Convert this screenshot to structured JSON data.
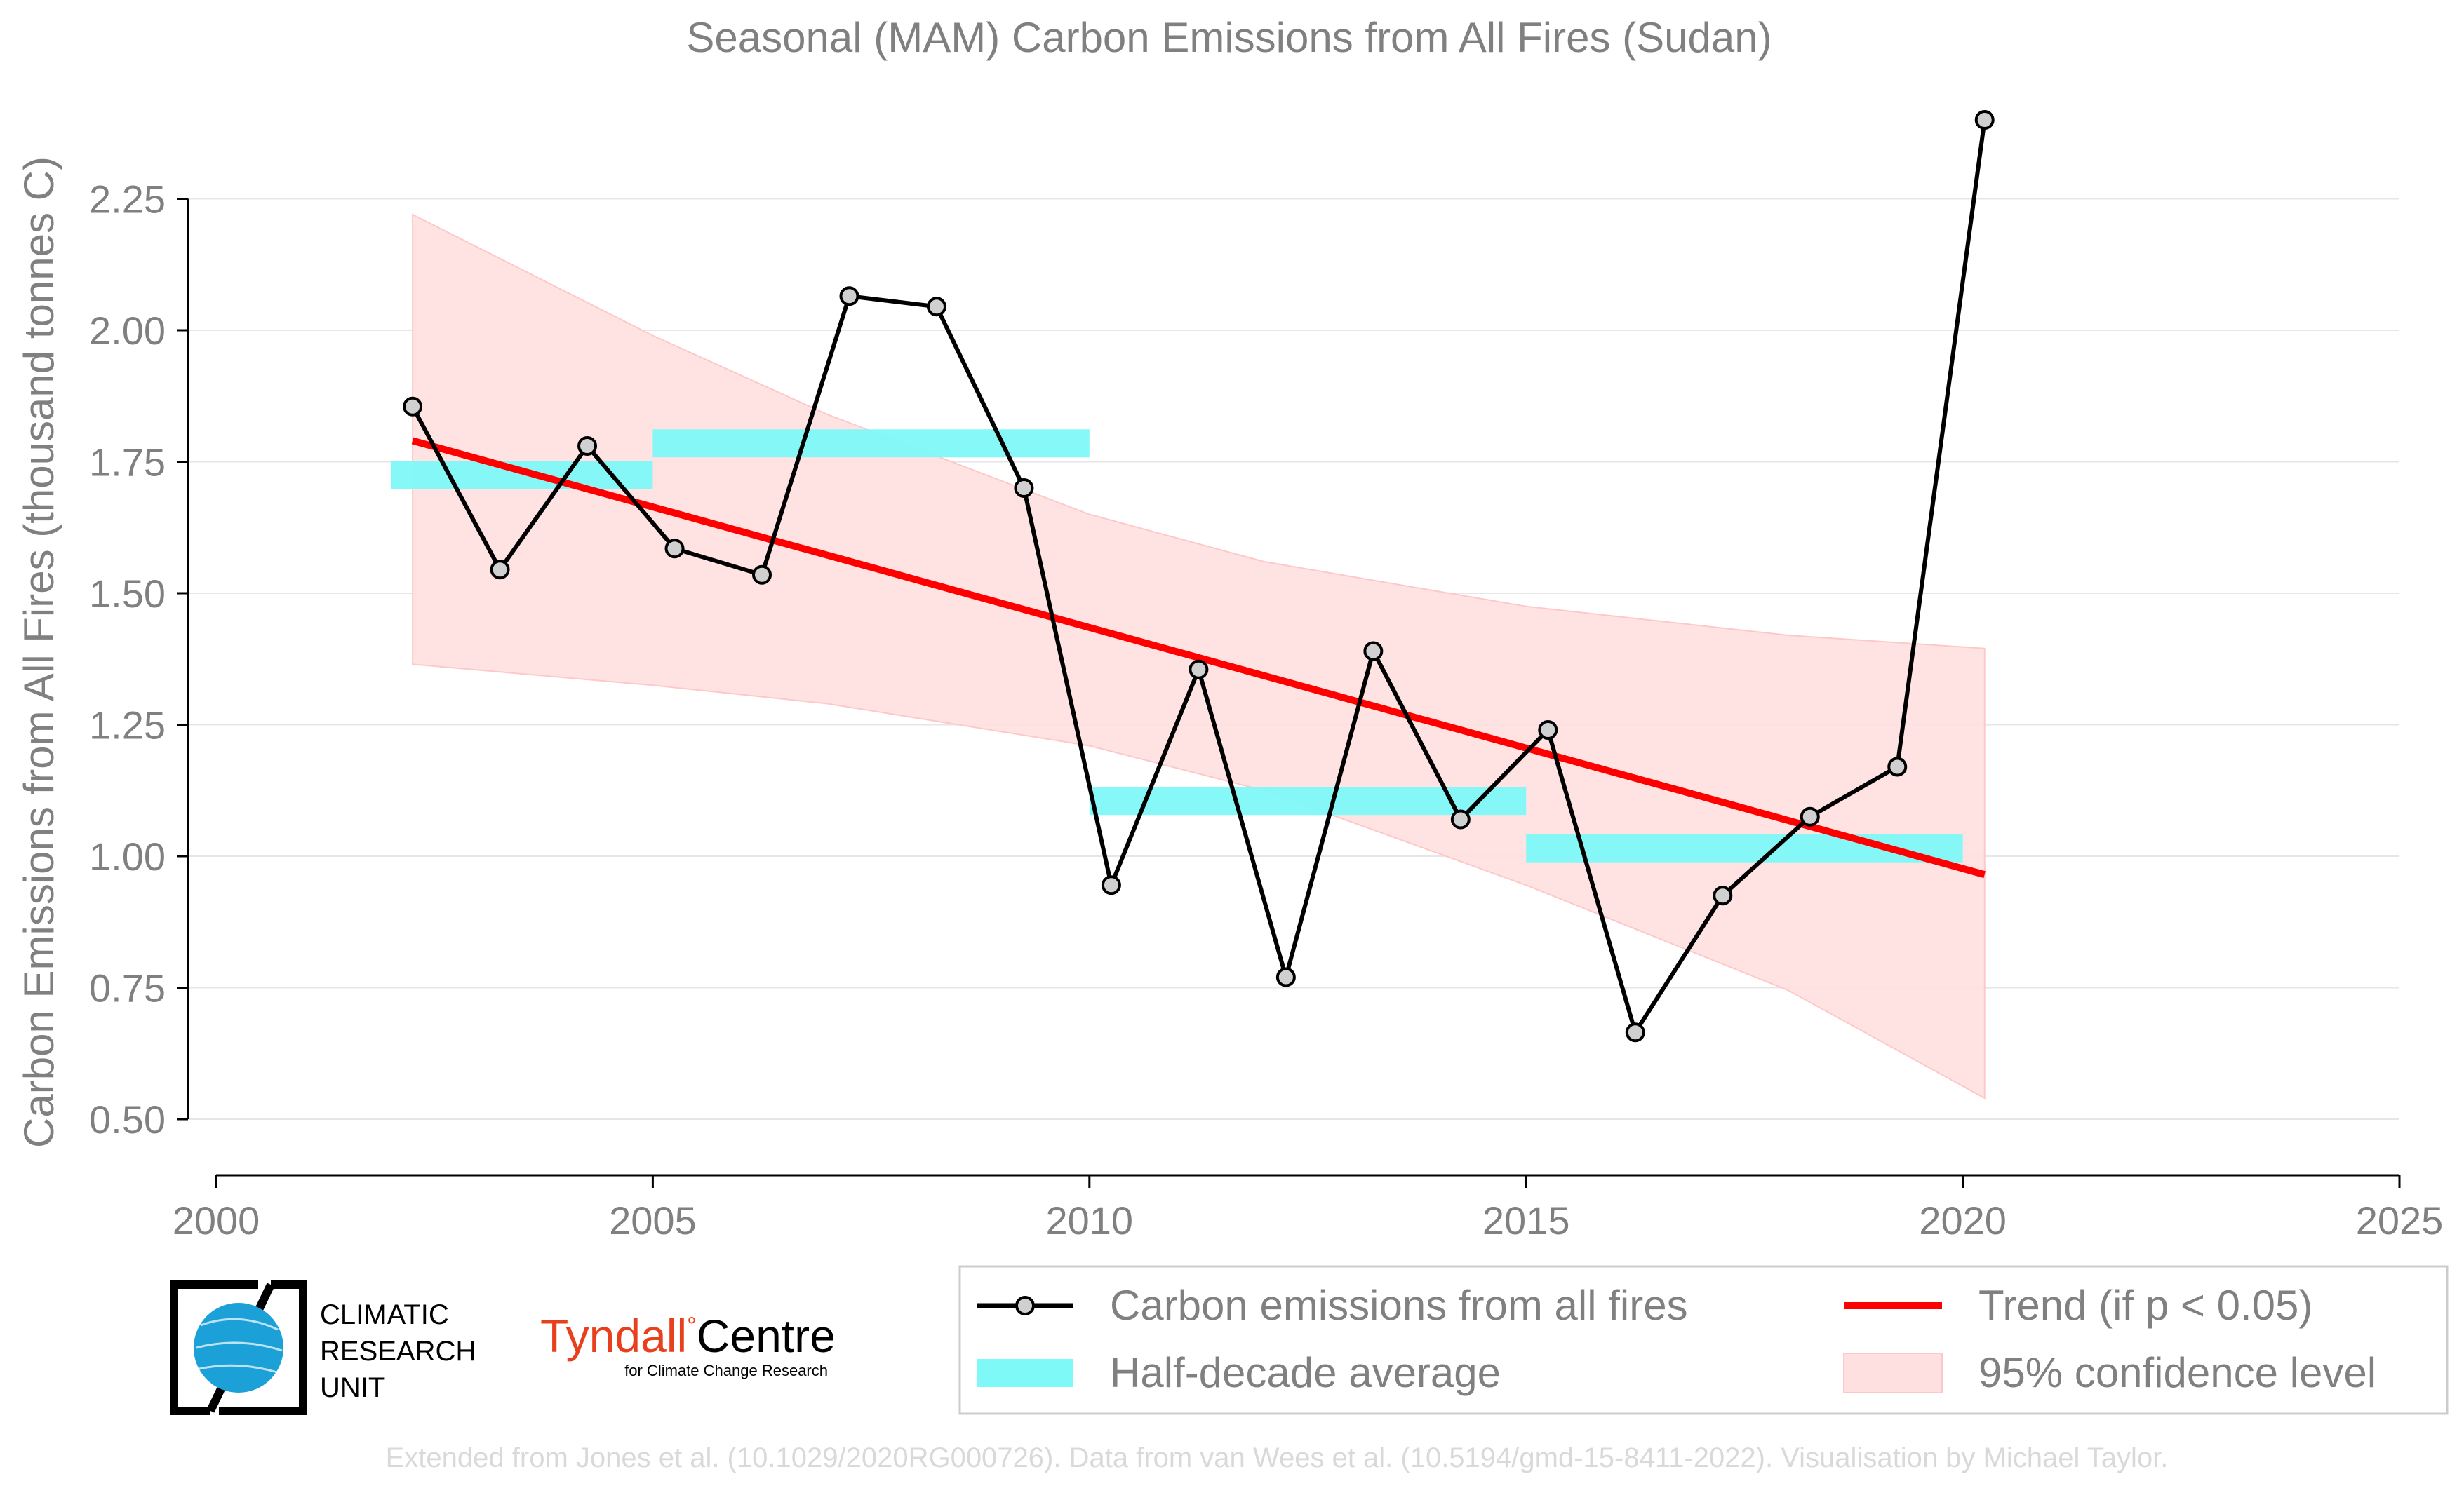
{
  "chart_data": {
    "type": "line",
    "title": "Seasonal (MAM) Carbon Emissions from All Fires (Sudan)",
    "xlabel": "",
    "ylabel": "Carbon Emissions from All Fires (thousand tonnes C)",
    "xlim": [
      2000,
      2025
    ],
    "ylim": [
      0.42,
      2.5
    ],
    "xticks": [
      2000,
      2005,
      2010,
      2015,
      2020,
      2025
    ],
    "xtick_labels": [
      "2000",
      "2005",
      "2010",
      "2015",
      "2020",
      "2025"
    ],
    "yticks": [
      0.5,
      0.75,
      1.0,
      1.25,
      1.5,
      1.75,
      2.0,
      2.25
    ],
    "ytick_labels": [
      "0.50",
      "0.75",
      "1.00",
      "1.25",
      "1.50",
      "1.75",
      "2.00",
      "2.25"
    ],
    "grid": "horizontal",
    "series": [
      {
        "name": "Carbon emissions from all fires",
        "color": "#000000",
        "x": [
          2002.25,
          2003.25,
          2004.25,
          2005.25,
          2006.25,
          2007.25,
          2008.25,
          2009.25,
          2010.25,
          2011.25,
          2012.25,
          2013.25,
          2014.25,
          2015.25,
          2016.25,
          2017.25,
          2018.25,
          2019.25,
          2020.25
        ],
        "y": [
          1.855,
          1.545,
          1.78,
          1.585,
          1.535,
          2.065,
          2.045,
          1.7,
          0.945,
          1.355,
          0.77,
          1.39,
          1.07,
          1.24,
          0.665,
          0.925,
          1.075,
          1.17,
          2.4
        ]
      },
      {
        "name": "Half-decade average",
        "color": "#7ff8f8",
        "segments": [
          {
            "x0": 2002.0,
            "x1": 2005.0,
            "y": 1.725
          },
          {
            "x0": 2005.0,
            "x1": 2010.0,
            "y": 1.785
          },
          {
            "x0": 2010.0,
            "x1": 2015.0,
            "y": 1.105
          },
          {
            "x0": 2015.0,
            "x1": 2020.0,
            "y": 1.015
          }
        ]
      },
      {
        "name": "Trend (if p < 0.05)",
        "color": "#ff0000",
        "x": [
          2002.25,
          2020.25
        ],
        "y": [
          1.79,
          0.965
        ]
      },
      {
        "name": "95% confidence level",
        "color": "#ffe0e0",
        "x": [
          2002.25,
          2005,
          2007,
          2010,
          2012,
          2015,
          2018,
          2020.25
        ],
        "upper": [
          2.22,
          1.99,
          1.84,
          1.65,
          1.56,
          1.475,
          1.42,
          1.395
        ],
        "lower": [
          1.365,
          1.325,
          1.29,
          1.21,
          1.125,
          0.945,
          0.745,
          0.54
        ]
      }
    ],
    "legend": {
      "position": "bottom-right",
      "entries": [
        "Carbon emissions from all fires",
        "Trend (if p < 0.05)",
        "Half-decade average",
        "95% confidence level"
      ]
    }
  },
  "logos": {
    "cru_lines": [
      "CLIMATIC",
      "RESEARCH",
      "UNIT"
    ],
    "tyndall_name": "Tyndall",
    "tyndall_degree": "°",
    "tyndall_centre": "Centre",
    "tyndall_sub": "for Climate Change Research"
  },
  "credit": "Extended from Jones et al. (10.1029/2020RG000726). Data from van Wees et al. (10.5194/gmd-15-8411-2022). Visualisation by Michael Taylor."
}
